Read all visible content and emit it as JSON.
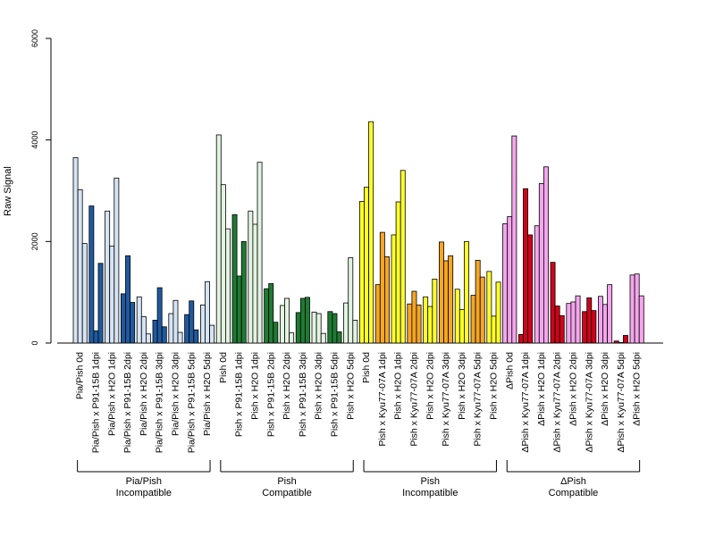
{
  "chart_data": {
    "type": "bar",
    "ylabel": "Raw Signal",
    "ylim": [
      0,
      6000
    ],
    "yticks": [
      0,
      2000,
      4000,
      6000
    ],
    "grid": false,
    "legend": "none",
    "categories": [
      "Pia/Pish 0d",
      "Pia/Pish x P91-15B 1dpi",
      "Pia/Pish x H2O 1dpi",
      "Pia/Pish x P91-15B 2dpi",
      "Pia/Pish x H2O 2dpi",
      "Pia/Pish x P91-15B 3dpi",
      "Pia/Pish x H2O 3dpi",
      "Pia/Pish x P91-15B 5dpi",
      "Pia/Pish x H2O 5dpi",
      "Pish 0d",
      "Pish x P91-15B 1dpi",
      "Pish x H2O 1dpi",
      "Pish x P91-15B 2dpi",
      "Pish x H2O 2dpi",
      "Pish x P91-15B 3dpi",
      "Pish x H2O 3dpi",
      "Pish x P91-15B 5dpi",
      "Pish x H2O 5dpi",
      "Pish 0d",
      "Pish x Kyu77-07A 1dpi",
      "Pish x H2O 1dpi",
      "Pish x Kyu77-07A 2dpi",
      "Pish x H2O 2dpi",
      "Pish x Kyu77-07A 3dpi",
      "Pish x H2O 3dpi",
      "Pish x Kyu77-07A 5dpi",
      "Pish x H2O 5dpi",
      "ΔPish 0d",
      "ΔPish x Kyu77-07A 1dpi",
      "ΔPish x H2O 1dpi",
      "ΔPish x Kyu77-07A 2dpi",
      "ΔPish x H2O 2dpi",
      "ΔPish x Kyu77-07A 3dpi",
      "ΔPish x H2O 3dpi",
      "ΔPish x Kyu77-07A 5dpi",
      "ΔPish x H2O 5dpi"
    ],
    "replicate_values": [
      [
        3650,
        3020,
        1960
      ],
      [
        2700,
        240,
        1570
      ],
      [
        2600,
        1910,
        3250
      ],
      [
        970,
        1720,
        800
      ],
      [
        910,
        520,
        180
      ],
      [
        450,
        1090,
        320
      ],
      [
        580,
        840,
        210
      ],
      [
        560,
        830,
        260
      ],
      [
        750,
        1210,
        350
      ],
      [
        4100,
        3120,
        2250
      ],
      [
        2530,
        1320,
        2000
      ],
      [
        2600,
        2340,
        3560
      ],
      [
        1070,
        1170,
        410
      ],
      [
        740,
        880,
        200
      ],
      [
        600,
        880,
        900
      ],
      [
        610,
        580,
        190
      ],
      [
        620,
        580,
        220
      ],
      [
        790,
        1680,
        450
      ],
      [
        2790,
        3070,
        4360
      ],
      [
        1150,
        2180,
        1700
      ],
      [
        2130,
        2780,
        3400
      ],
      [
        770,
        1020,
        750
      ],
      [
        910,
        720,
        1260
      ],
      [
        1990,
        1620,
        1720
      ],
      [
        1060,
        660,
        2000
      ],
      [
        940,
        1630,
        1300
      ],
      [
        1410,
        530,
        1200
      ],
      [
        2350,
        2490,
        4080
      ],
      [
        170,
        3040,
        2130
      ],
      [
        2310,
        3140,
        3470
      ],
      [
        1590,
        730,
        540
      ],
      [
        780,
        810,
        930
      ],
      [
        620,
        890,
        640
      ],
      [
        920,
        760,
        1150
      ],
      [
        40,
        10,
        150
      ],
      [
        1340,
        1360,
        930
      ]
    ],
    "category_colors": [
      "#d6e4f4",
      "#1f5aa0",
      "#d6e4f4",
      "#1f5aa0",
      "#d6e4f4",
      "#1f5aa0",
      "#d6e4f4",
      "#1f5aa0",
      "#d6e4f4",
      "#e3f3e1",
      "#1f7a33",
      "#e3f3e1",
      "#1f7a33",
      "#e3f3e1",
      "#1f7a33",
      "#e3f3e1",
      "#1f7a33",
      "#e3f3e1",
      "#ffff2a",
      "#f5a623",
      "#ffff2a",
      "#f5a623",
      "#ffff2a",
      "#f5a623",
      "#ffff2a",
      "#f5a623",
      "#ffff2a",
      "#f4a6ec",
      "#d0021b",
      "#f4a6ec",
      "#d0021b",
      "#f4a6ec",
      "#d0021b",
      "#f4a6ec",
      "#d0021b",
      "#f4a6ec"
    ],
    "groups": [
      {
        "label_line1": "Pia/Pish",
        "label_line2": "Incompatible",
        "start": 0,
        "end": 8
      },
      {
        "label_line1": "Pish",
        "label_line2": "Compatible",
        "start": 9,
        "end": 17
      },
      {
        "label_line1": "Pish",
        "label_line2": "Incompatible",
        "start": 18,
        "end": 26
      },
      {
        "label_line1": "ΔPish",
        "label_line2": "Compatible",
        "start": 27,
        "end": 35
      }
    ]
  }
}
